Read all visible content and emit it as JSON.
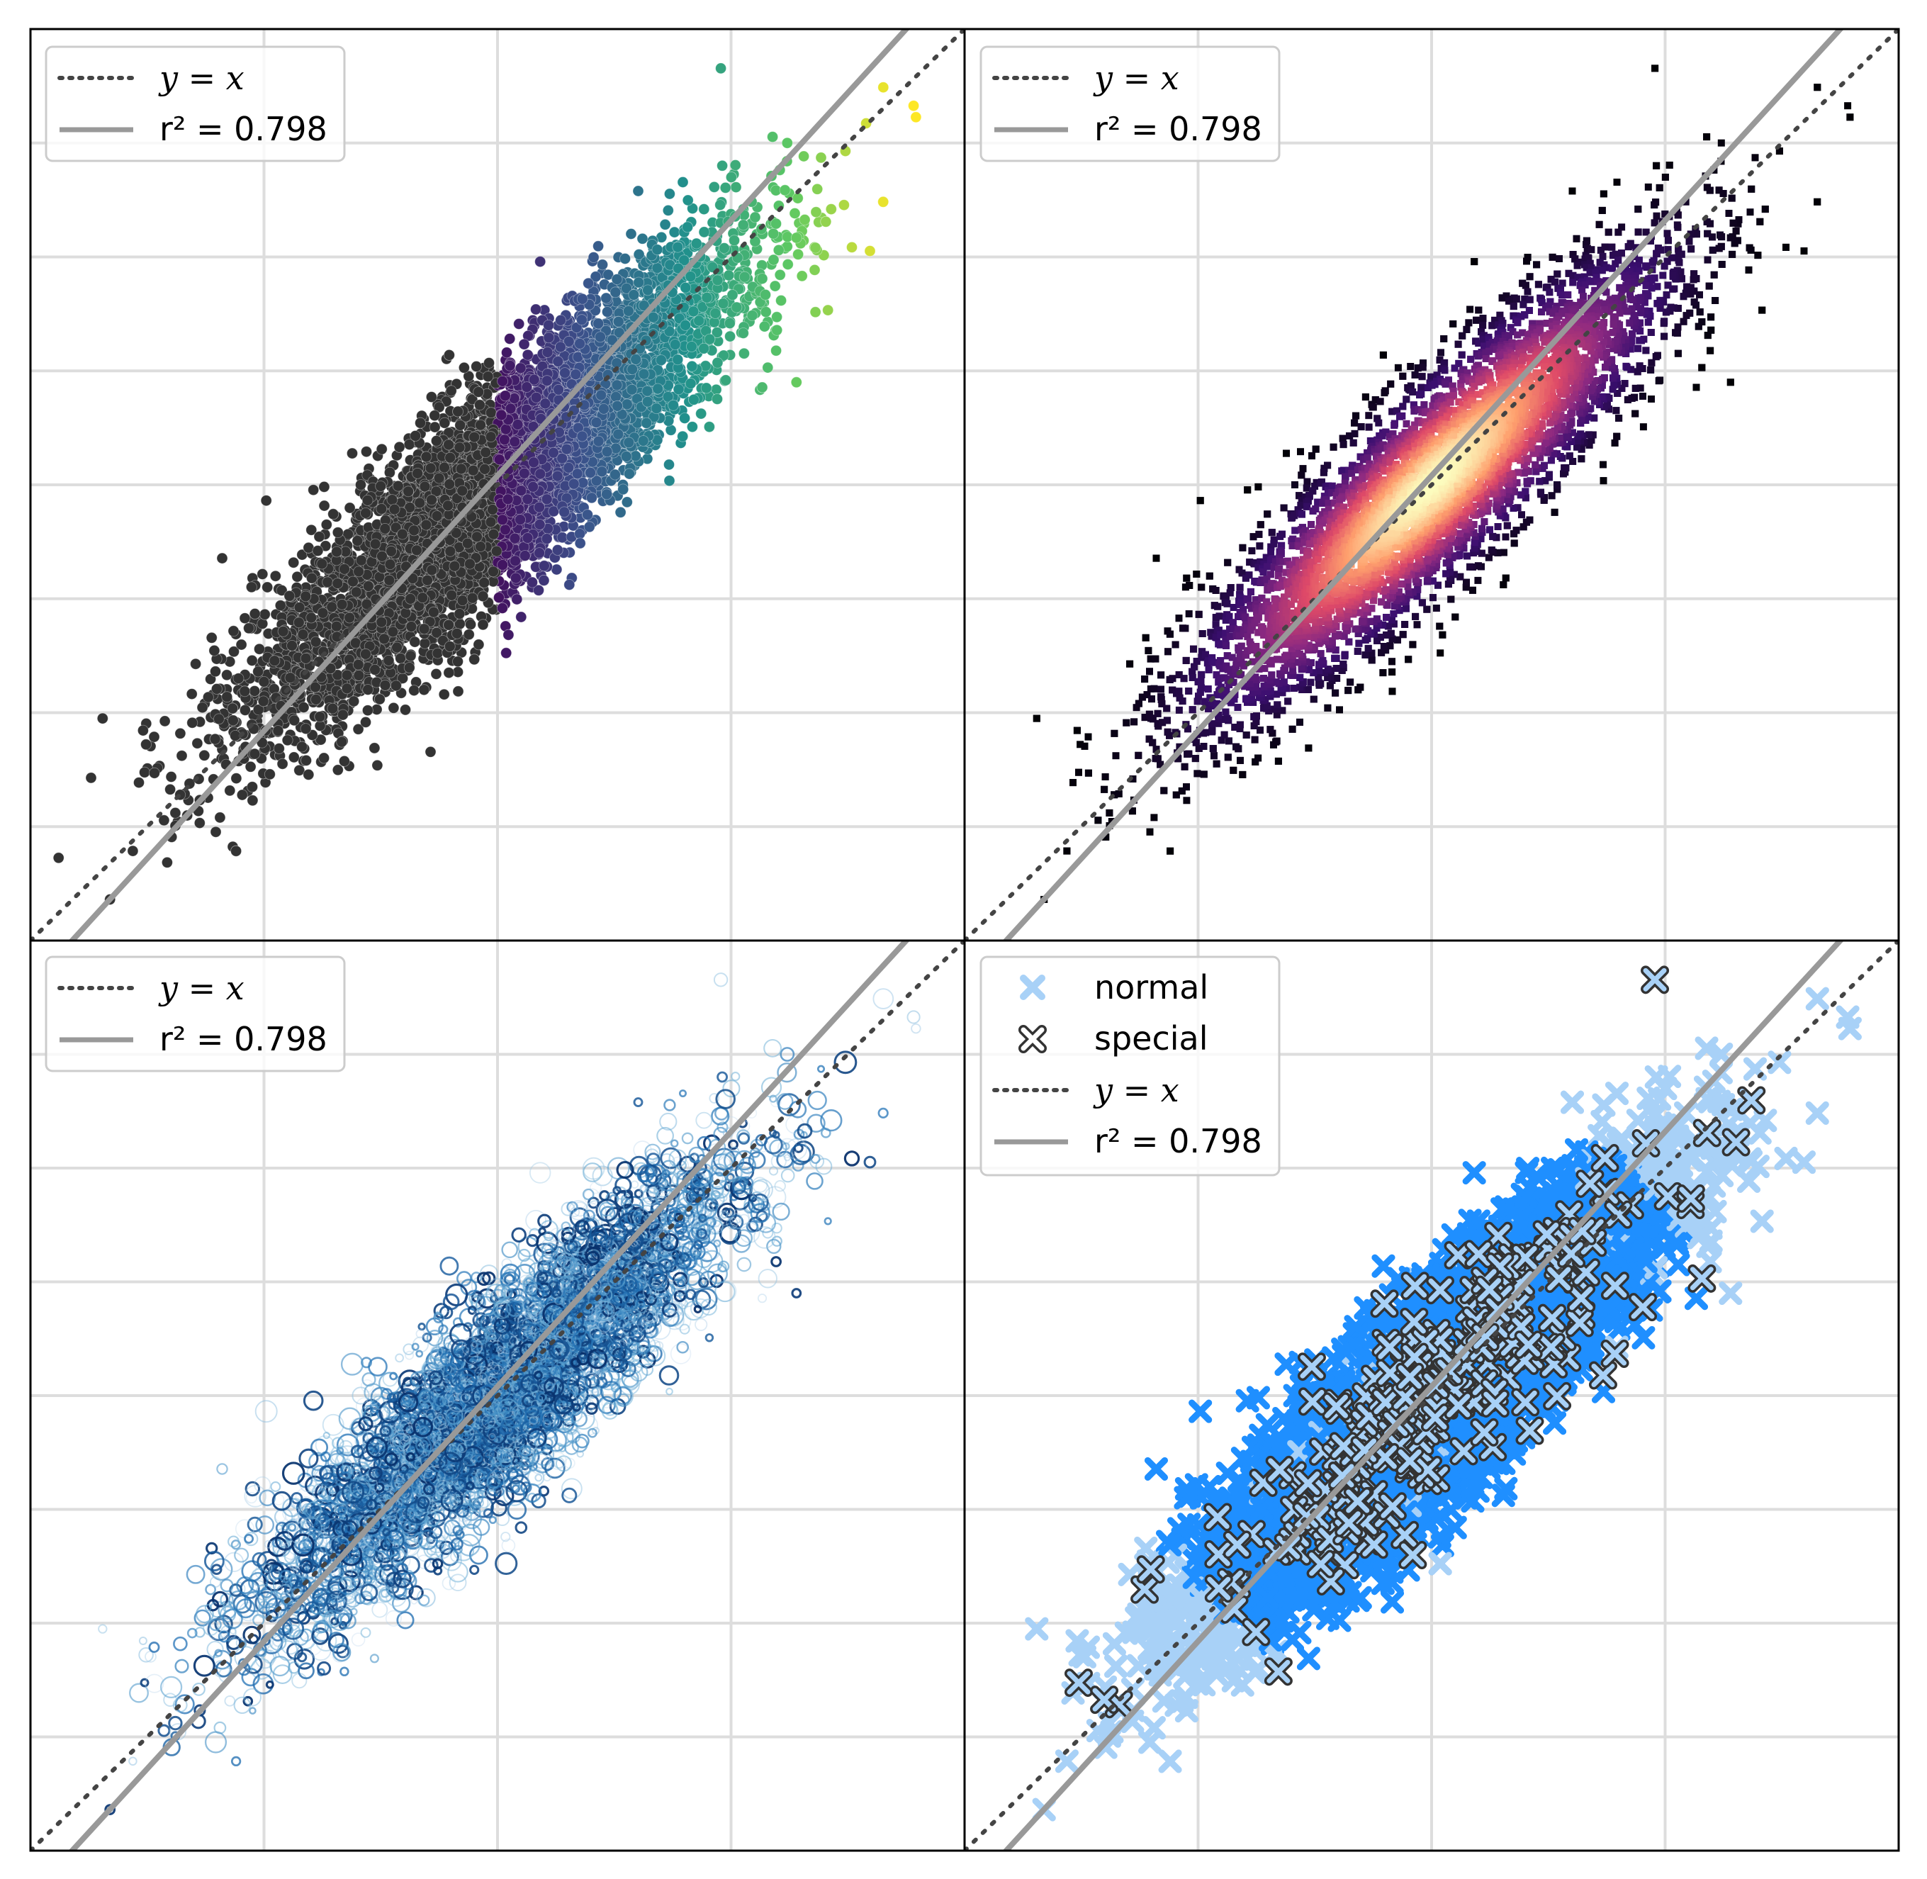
{
  "colors": {
    "identity_line": "#444444",
    "fit_line": "#999999",
    "grid": "#dddddd",
    "frame": "#000000",
    "left_points": "#333333",
    "normal_marker": "#1f8fff",
    "normal_marker_light": "#a8d1f7",
    "special_marker": "#333333"
  },
  "legend": {
    "identity_label": "y = x",
    "fit_label": "r² = 0.798",
    "normal_label": "normal",
    "special_label": "special"
  },
  "chart_data": [
    {
      "type": "scatter",
      "panel": "top-left",
      "colormap": "viridis (x > 0), dark gray (x ≤ 0)",
      "xlim": [
        -4,
        4
      ],
      "ylim": [
        -4,
        4
      ],
      "grid": true,
      "legend_position": "top-left",
      "legend": [
        "y = x",
        "r² = 0.798"
      ],
      "series": [
        {
          "name": "y = x",
          "kind": "line",
          "slope": 1,
          "intercept": 0
        },
        {
          "name": "r² = 0.798",
          "kind": "line",
          "slope": 1.12,
          "intercept": 0.08
        },
        {
          "kind": "points",
          "count_approx": 10000,
          "distribution": "bivariate normal",
          "corr": 0.89,
          "sx": 1.0,
          "sy": 1.0
        }
      ]
    },
    {
      "type": "scatter",
      "panel": "top-right",
      "colormap": "magma (point density)",
      "marker": "square",
      "xlim": [
        -4,
        4
      ],
      "ylim": [
        -4,
        4
      ],
      "grid": true,
      "legend_position": "top-left",
      "legend": [
        "y = x",
        "r² = 0.798"
      ],
      "series": [
        {
          "name": "y = x",
          "kind": "line",
          "slope": 1,
          "intercept": 0
        },
        {
          "name": "r² = 0.798",
          "kind": "line",
          "slope": 1.12,
          "intercept": 0.08
        },
        {
          "kind": "points",
          "count_approx": 10000,
          "distribution": "bivariate normal",
          "corr": 0.89
        }
      ]
    },
    {
      "type": "scatter",
      "panel": "bottom-left",
      "colormap": "Blues (open circles, variable size)",
      "marker": "open circle",
      "xlim": [
        -4,
        4
      ],
      "ylim": [
        -4,
        4
      ],
      "grid": true,
      "legend_position": "top-left",
      "legend": [
        "y = x",
        "r² = 0.798"
      ],
      "series": [
        {
          "name": "y = x",
          "kind": "line",
          "slope": 1,
          "intercept": 0
        },
        {
          "name": "r² = 0.798",
          "kind": "line",
          "slope": 1.12,
          "intercept": 0.08
        },
        {
          "kind": "points",
          "count_approx": 5000,
          "distribution": "bivariate normal",
          "corr": 0.89
        }
      ]
    },
    {
      "type": "scatter",
      "panel": "bottom-right",
      "marker": "x",
      "xlim": [
        -4,
        4
      ],
      "ylim": [
        -4,
        4
      ],
      "grid": true,
      "legend_position": "top-left",
      "legend": [
        "normal",
        "special",
        "y = x",
        "r² = 0.798"
      ],
      "series": [
        {
          "name": "normal",
          "kind": "points",
          "count_approx": 10000,
          "distribution": "bivariate normal",
          "corr": 0.89
        },
        {
          "name": "special",
          "kind": "points",
          "count_approx": 260,
          "distribution": "bivariate normal",
          "corr": 0.89
        },
        {
          "name": "y = x",
          "kind": "line",
          "slope": 1,
          "intercept": 0
        },
        {
          "name": "r² = 0.798",
          "kind": "line",
          "slope": 1.12,
          "intercept": 0.08
        }
      ]
    }
  ]
}
